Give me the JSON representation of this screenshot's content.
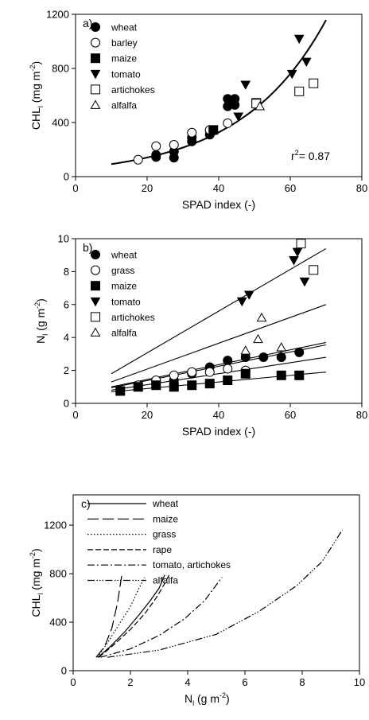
{
  "chart_data": [
    {
      "panel": "a)",
      "type": "scatter",
      "xlabel": "SPAD index (-)",
      "ylabel": "CHL",
      "ylabel_sub": "l",
      "ylabel_unit": " (mg m",
      "ylabel_sup": "-2",
      "ylabel_close": ")",
      "xlim": [
        0,
        80
      ],
      "ylim": [
        0,
        1200
      ],
      "xticks": [
        0,
        20,
        40,
        60,
        80
      ],
      "yticks": [
        0,
        400,
        800,
        1200
      ],
      "legend_position": "top-left",
      "annotation": "r",
      "annotation_sup": "2",
      "annotation_rest": "= 0.87",
      "series": [
        {
          "name": "wheat",
          "marker": "circle-filled",
          "points": [
            [
              22.5,
              145
            ],
            [
              22.5,
              160
            ],
            [
              27.5,
              140
            ],
            [
              27.5,
              185
            ],
            [
              32.5,
              260
            ],
            [
              32.5,
              290
            ],
            [
              37.5,
              310
            ],
            [
              37.5,
              340
            ],
            [
              42.5,
              520
            ],
            [
              42.5,
              575
            ],
            [
              44.5,
              575
            ],
            [
              44.5,
              530
            ]
          ]
        },
        {
          "name": "barley",
          "marker": "circle-open",
          "points": [
            [
              17.5,
              125
            ],
            [
              22.5,
              225
            ],
            [
              27.5,
              235
            ],
            [
              32.5,
              325
            ],
            [
              42.5,
              395
            ],
            [
              37.5,
              345
            ]
          ]
        },
        {
          "name": "maize",
          "marker": "square-filled",
          "points": [
            [
              38.5,
              345
            ],
            [
              50.5,
              545
            ]
          ]
        },
        {
          "name": "tomato",
          "marker": "triangle-down-filled",
          "points": [
            [
              45.5,
              445
            ],
            [
              47.5,
              680
            ],
            [
              60.5,
              760
            ],
            [
              62.5,
              1020
            ],
            [
              64.5,
              850
            ]
          ]
        },
        {
          "name": "artichokes",
          "marker": "square-open",
          "points": [
            [
              50.5,
              540
            ],
            [
              62.5,
              630
            ],
            [
              66.5,
              690
            ]
          ]
        },
        {
          "name": "alfalfa",
          "marker": "triangle-up-open",
          "points": [
            [
              51.5,
              520
            ]
          ]
        }
      ],
      "fit": {
        "type": "exponential",
        "x_range": [
          10,
          70
        ],
        "a": 60.8,
        "b": 0.0421
      }
    },
    {
      "panel": "b)",
      "type": "scatter",
      "xlabel": "SPAD index (-)",
      "ylabel": "N",
      "ylabel_sub": "l",
      "ylabel_unit": " (g m",
      "ylabel_sup": "-2",
      "ylabel_close": ")",
      "xlim": [
        0,
        80
      ],
      "ylim": [
        0,
        10
      ],
      "xticks": [
        0,
        20,
        40,
        60,
        80
      ],
      "yticks": [
        0,
        2,
        4,
        6,
        8,
        10
      ],
      "legend_position": "top-left",
      "series": [
        {
          "name": "wheat",
          "marker": "circle-filled",
          "points": [
            [
              22.5,
              1.3
            ],
            [
              27.5,
              1.4
            ],
            [
              32.5,
              1.8
            ],
            [
              37.5,
              2.2
            ],
            [
              42.5,
              2.6
            ],
            [
              47.5,
              2.8
            ],
            [
              52.5,
              2.8
            ],
            [
              57.5,
              2.8
            ],
            [
              62.5,
              3.1
            ]
          ]
        },
        {
          "name": "grass",
          "marker": "circle-open",
          "points": [
            [
              17.5,
              1.1
            ],
            [
              22.5,
              1.4
            ],
            [
              27.5,
              1.7
            ],
            [
              32.5,
              1.9
            ],
            [
              37.5,
              1.9
            ],
            [
              42.5,
              2.1
            ],
            [
              47.5,
              2.0
            ]
          ]
        },
        {
          "name": "maize",
          "marker": "square-filled",
          "points": [
            [
              12.5,
              0.75
            ],
            [
              17.5,
              1.0
            ],
            [
              22.5,
              1.1
            ],
            [
              27.5,
              1.0
            ],
            [
              32.5,
              1.1
            ],
            [
              37.5,
              1.2
            ],
            [
              42.5,
              1.4
            ],
            [
              47.5,
              1.8
            ],
            [
              57.5,
              1.7
            ],
            [
              62.5,
              1.7
            ]
          ]
        },
        {
          "name": "tomato",
          "marker": "triangle-down-filled",
          "points": [
            [
              46.5,
              6.2
            ],
            [
              48.5,
              6.6
            ],
            [
              61.0,
              8.7
            ],
            [
              62.0,
              9.2
            ],
            [
              64.0,
              7.4
            ]
          ]
        },
        {
          "name": "artichokes",
          "marker": "square-open",
          "points": [
            [
              63.0,
              9.7
            ],
            [
              66.5,
              8.1
            ]
          ]
        },
        {
          "name": "alfalfa",
          "marker": "triangle-up-open",
          "points": [
            [
              47.5,
              3.2
            ],
            [
              51.0,
              3.9
            ],
            [
              52.0,
              5.2
            ],
            [
              57.5,
              3.4
            ]
          ]
        }
      ],
      "lines": [
        {
          "from": [
            10,
            1.8
          ],
          "to": [
            70,
            9.4
          ]
        },
        {
          "from": [
            10,
            1.3
          ],
          "to": [
            70,
            6.0
          ]
        },
        {
          "from": [
            10,
            1.0
          ],
          "to": [
            70,
            3.7
          ]
        },
        {
          "from": [
            10,
            0.95
          ],
          "to": [
            70,
            3.55
          ]
        },
        {
          "from": [
            10,
            0.8
          ],
          "to": [
            70,
            2.8
          ]
        },
        {
          "from": [
            10,
            0.7
          ],
          "to": [
            70,
            1.9
          ]
        }
      ]
    },
    {
      "panel": "c)",
      "type": "line",
      "xlabel": "N",
      "xlabel_sub": "l",
      "xlabel_unit": " (g m",
      "xlabel_sup": "-2",
      "xlabel_close": ")",
      "ylabel": "CHL",
      "ylabel_sub": "l",
      "ylabel_unit": " (mg m",
      "ylabel_sup": "-2",
      "ylabel_close": ")",
      "xlim": [
        0,
        10
      ],
      "ylim": [
        0,
        1450
      ],
      "xticks": [
        0,
        2,
        4,
        6,
        8,
        10
      ],
      "yticks": [
        0,
        400,
        800,
        1200
      ],
      "legend_position": "top-left",
      "series": [
        {
          "name": "wheat",
          "dash": "",
          "points": [
            [
              0.86,
              110
            ],
            [
              1.3,
              200
            ],
            [
              1.8,
              320
            ],
            [
              2.3,
              460
            ],
            [
              2.7,
              580
            ],
            [
              3.0,
              680
            ],
            [
              3.2,
              790
            ]
          ]
        },
        {
          "name": "maize",
          "dash": "14 5",
          "points": [
            [
              0.8,
              110
            ],
            [
              1.1,
              200
            ],
            [
              1.35,
              350
            ],
            [
              1.55,
              560
            ],
            [
              1.7,
              790
            ]
          ]
        },
        {
          "name": "grass",
          "dash": "1.5 2.5",
          "points": [
            [
              0.85,
              110
            ],
            [
              1.2,
              230
            ],
            [
              1.6,
              380
            ],
            [
              2.0,
              530
            ],
            [
              2.3,
              680
            ],
            [
              2.5,
              770
            ]
          ]
        },
        {
          "name": "rape",
          "dash": "7 3",
          "points": [
            [
              0.9,
              110
            ],
            [
              1.4,
              210
            ],
            [
              2.0,
              340
            ],
            [
              2.5,
              470
            ],
            [
              2.9,
              600
            ],
            [
              3.2,
              720
            ],
            [
              3.35,
              790
            ]
          ]
        },
        {
          "name": "tomato, artichokes",
          "dash": "9 3 2 3",
          "points": [
            [
              0.95,
              110
            ],
            [
              2.0,
              180
            ],
            [
              3.0,
              290
            ],
            [
              3.9,
              430
            ],
            [
              4.6,
              580
            ],
            [
              5.2,
              770
            ]
          ]
        },
        {
          "name": "alfalfa",
          "dash": "9 2.5 1.5 2 1.5 2 1.5 2.5",
          "points": [
            [
              1.2,
              110
            ],
            [
              3.0,
              170
            ],
            [
              5.0,
              300
            ],
            [
              6.5,
              490
            ],
            [
              7.8,
              700
            ],
            [
              8.7,
              900
            ],
            [
              9.4,
              1160
            ]
          ]
        }
      ]
    }
  ]
}
